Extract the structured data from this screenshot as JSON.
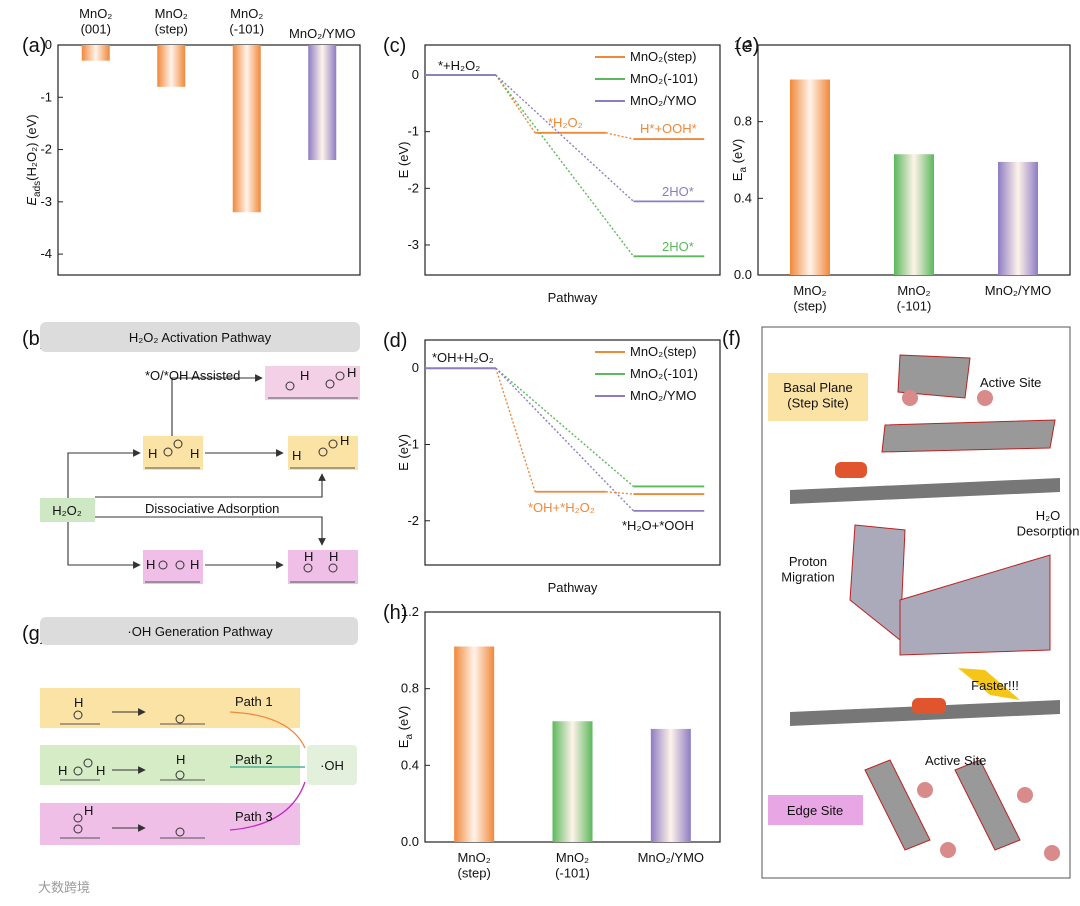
{
  "chart_data": [
    {
      "type": "bar",
      "label": "(a)",
      "ylabel": [
        "E",
        "ads",
        "(H₂O₂) (eV)"
      ],
      "categories": [
        "MnO₂\n(001)",
        "MnO₂\n(step)",
        "MnO₂\n(-101)",
        "MnO₂/YMO"
      ],
      "values": [
        -0.3,
        -0.8,
        -3.2,
        -2.2
      ],
      "colors": [
        "#f0883a",
        "#f0883a",
        "#f0883a",
        "#8e7cc3"
      ],
      "ylim": [
        -4.4,
        0
      ],
      "yticks": [
        0,
        -1,
        -2,
        -3,
        -4
      ]
    },
    {
      "type": "line",
      "label": "(c)",
      "xlabel": "Pathway",
      "ylabel": [
        "E",
        "",
        " (eV)"
      ],
      "series": [
        {
          "name": "MnO₂(step)",
          "color": "#f0883a",
          "values": [
            0,
            -1.02,
            -1.13
          ]
        },
        {
          "name": "MnO₂(-101)",
          "color": "#5cb85c",
          "values": [
            0,
            null,
            -3.2
          ]
        },
        {
          "name": "MnO₂/YMO",
          "color": "#8e7cc3",
          "values": [
            0,
            null,
            -2.23
          ]
        }
      ],
      "annotations": [
        "*+H₂O₂",
        "*H₂O₂",
        "H*+OOH*",
        "2HO*",
        "2HO*"
      ],
      "ylim": [
        -3.53,
        0.53
      ],
      "yticks": [
        0,
        -1,
        -2,
        -3
      ],
      "legend": "upper right"
    },
    {
      "type": "bar",
      "label": "(e)",
      "ylabel": [
        "E",
        "a",
        " (eV)"
      ],
      "categories": [
        "MnO₂\n(step)",
        "MnO₂\n(-101)",
        "MnO₂/YMO"
      ],
      "values": [
        1.02,
        0.63,
        0.59
      ],
      "colors": [
        "#f0883a",
        "#5cb85c",
        "#8e7cc3"
      ],
      "ylim": [
        0,
        1.2
      ],
      "yticks": [
        {
          "value": 0,
          "label": "0.0"
        },
        0.4,
        0.8,
        1.2
      ]
    },
    {
      "type": "line",
      "label": "(d)",
      "xlabel": "Pathway",
      "ylabel": [
        "E",
        "",
        " (eV)"
      ],
      "series": [
        {
          "name": "MnO₂(step)",
          "color": "#f0883a",
          "values": [
            0,
            -1.62,
            -1.65
          ]
        },
        {
          "name": "MnO₂(-101)",
          "color": "#5cb85c",
          "values": [
            0,
            null,
            -1.55
          ]
        },
        {
          "name": "MnO₂/YMO",
          "color": "#8e7cc3",
          "values": [
            0,
            null,
            -1.87
          ]
        }
      ],
      "annotations": [
        "*OH+H₂O₂",
        "*OH+*H₂O₂",
        "*H₂O+*OOH"
      ],
      "ylim": [
        -2.58,
        0.37
      ],
      "yticks": [
        0,
        -1,
        -2
      ],
      "legend": "upper right"
    },
    {
      "type": "bar",
      "label": "(h)",
      "ylabel": [
        "E",
        "a",
        " (eV)"
      ],
      "categories": [
        "MnO₂\n(step)",
        "MnO₂\n(-101)",
        "MnO₂/YMO"
      ],
      "values": [
        1.02,
        0.63,
        0.59
      ],
      "colors": [
        "#f0883a",
        "#5cb85c",
        "#8e7cc3"
      ],
      "ylim": [
        0,
        1.2
      ],
      "yticks": [
        {
          "value": 0,
          "label": "0.0"
        },
        0.4,
        0.8,
        1.2
      ]
    }
  ],
  "panels": {
    "b": {
      "label": "(b)",
      "title": "H₂O₂  Activation  Pathway",
      "assisted": "*O/*OH Assisted",
      "reactant": "H₂O₂",
      "dissociative": "Dissociative Adsorption"
    },
    "g": {
      "label": "(g)",
      "title": "·OH Generation Pathway",
      "path1": "Path 1",
      "path2": "Path 2",
      "path3": "Path 3",
      "product": "·OH"
    },
    "f": {
      "label": "(f)",
      "basal": "Basal Plane\n(Step Site)",
      "active1": "Active Site",
      "desorption": "H₂O\nDesorption",
      "migration": "Proton\nMigration",
      "faster": "Faster!!!",
      "active2": "Active Site",
      "edge": "Edge Site"
    }
  },
  "atom_h": "H",
  "watermark": "大数跨境"
}
